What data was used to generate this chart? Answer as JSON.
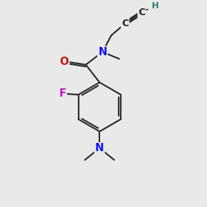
{
  "bg_color": "#e8eae8",
  "atom_colors": {
    "C": "#2a2a2a",
    "N": "#1010ff",
    "O": "#cc1010",
    "F": "#cc10cc",
    "H": "#2a7a7a"
  },
  "bond_color": "#2a2a2a",
  "bond_width": 1.6,
  "font_size_atoms": 11,
  "font_size_C": 10,
  "font_size_H": 9
}
